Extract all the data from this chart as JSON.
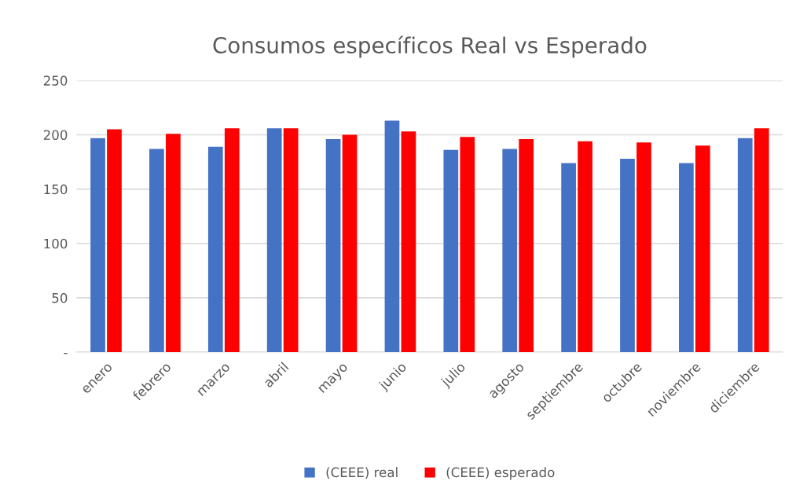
{
  "chart_data": {
    "type": "bar",
    "title": "Consumos específicos Real vs Esperado",
    "categories": [
      "enero",
      "febrero",
      "marzo",
      "abril",
      "mayo",
      "junio",
      "julio",
      "agosto",
      "septiembre",
      "octubre",
      "noviembre",
      "diciembre"
    ],
    "series": [
      {
        "name": "(CEEE) real",
        "color": "#4472c4",
        "values": [
          197,
          187,
          189,
          206,
          196,
          213,
          186,
          187,
          174,
          178,
          174,
          197
        ]
      },
      {
        "name": "(CEEE) esperado",
        "color": "#ff0000",
        "values": [
          205,
          201,
          206,
          206,
          200,
          203,
          198,
          196,
          194,
          193,
          190,
          206
        ]
      }
    ],
    "ylim": [
      0,
      250
    ],
    "yticks": [
      {
        "value": 0,
        "label": "-"
      },
      50,
      100,
      150,
      200,
      250
    ],
    "grid": "y",
    "legend": "bottom"
  }
}
